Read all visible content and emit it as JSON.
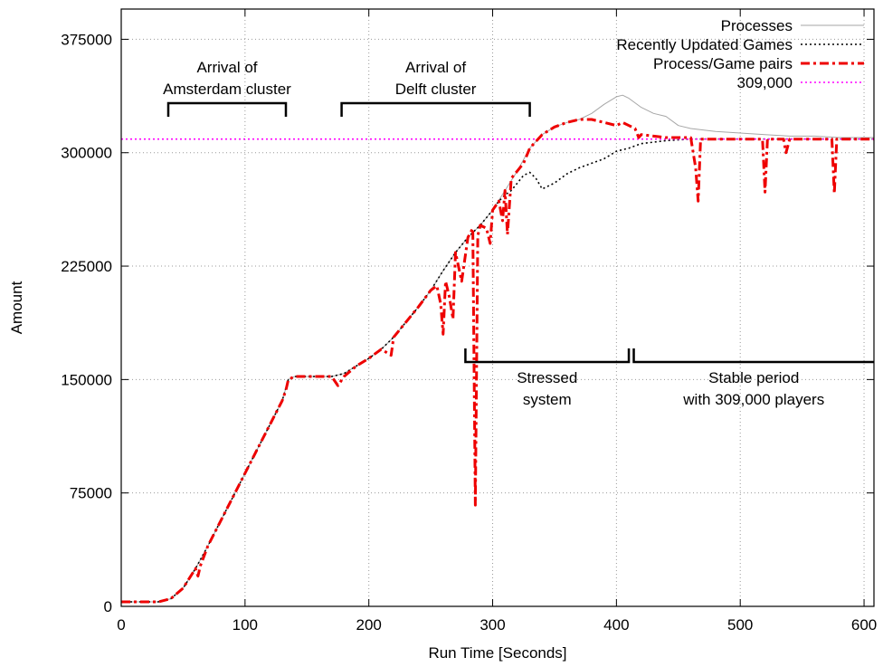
{
  "chart_data": {
    "type": "line",
    "xlabel": "Run Time [Seconds]",
    "ylabel": "Amount",
    "xlim": [
      0,
      608
    ],
    "ylim": [
      0,
      395000
    ],
    "xticks": [
      "0",
      "100",
      "200",
      "300",
      "400",
      "500",
      "600"
    ],
    "yticks": [
      "0",
      "75000",
      "150000",
      "225000",
      "300000",
      "375000"
    ],
    "grid": true,
    "legend_position": "top-right",
    "series": [
      {
        "name": "Processes",
        "color": "#a6a6a6",
        "style": "solid",
        "x": [
          0,
          30,
          40,
          50,
          60,
          70,
          80,
          90,
          100,
          110,
          120,
          130,
          135,
          140,
          150,
          160,
          170,
          180,
          190,
          200,
          210,
          220,
          230,
          240,
          250,
          260,
          270,
          280,
          290,
          300,
          310,
          320,
          330,
          340,
          350,
          360,
          370,
          380,
          390,
          400,
          405,
          410,
          420,
          430,
          440,
          450,
          460,
          480,
          500,
          520,
          540,
          560,
          580,
          600,
          608
        ],
        "y": [
          3000,
          3000,
          5000,
          12000,
          25000,
          40000,
          56000,
          72000,
          88000,
          104000,
          120000,
          136000,
          150000,
          152000,
          152000,
          152000,
          152000,
          154000,
          159000,
          164000,
          170000,
          178000,
          188000,
          198000,
          209000,
          222000,
          234000,
          244000,
          252000,
          262000,
          275000,
          288000,
          303000,
          312000,
          317000,
          320000,
          322000,
          326000,
          332000,
          337000,
          338000,
          336000,
          330000,
          326000,
          324000,
          318000,
          316000,
          314000,
          313000,
          312000,
          311000,
          311000,
          310000,
          310000,
          310000
        ]
      },
      {
        "name": "Recently Updated Games",
        "color": "#000000",
        "style": "dotted",
        "x": [
          0,
          30,
          40,
          50,
          60,
          70,
          80,
          90,
          100,
          110,
          120,
          130,
          135,
          140,
          150,
          160,
          170,
          180,
          190,
          200,
          210,
          220,
          230,
          240,
          250,
          260,
          270,
          280,
          290,
          300,
          305,
          310,
          315,
          320,
          325,
          330,
          335,
          340,
          345,
          350,
          360,
          370,
          380,
          390,
          400,
          410,
          420,
          440,
          460,
          480,
          500,
          520,
          540,
          560,
          580,
          600,
          608
        ],
        "y": [
          3000,
          3000,
          5000,
          12000,
          25000,
          40000,
          56000,
          72000,
          88000,
          104000,
          120000,
          136000,
          150000,
          152000,
          152000,
          152000,
          152000,
          154000,
          159000,
          164000,
          170000,
          178000,
          188000,
          198000,
          209000,
          222000,
          234000,
          244000,
          252000,
          262000,
          268000,
          272000,
          275000,
          280000,
          285000,
          287000,
          283000,
          276000,
          278000,
          280000,
          286000,
          290000,
          293000,
          296000,
          301000,
          303000,
          306000,
          308000,
          309000,
          309000,
          309000,
          309000,
          309000,
          309000,
          309000,
          309000,
          309000
        ]
      },
      {
        "name": "Process/Game pairs",
        "color": "#ee0000",
        "style": "dash-dot",
        "x": [
          0,
          30,
          40,
          50,
          60,
          62,
          64,
          70,
          80,
          90,
          100,
          110,
          120,
          130,
          133,
          135,
          140,
          150,
          160,
          170,
          175,
          180,
          190,
          200,
          210,
          218,
          220,
          230,
          240,
          250,
          255,
          258,
          260,
          262,
          265,
          268,
          270,
          275,
          280,
          284,
          286,
          288,
          290,
          295,
          298,
          300,
          305,
          308,
          310,
          312,
          315,
          320,
          325,
          330,
          340,
          350,
          360,
          370,
          380,
          390,
          400,
          405,
          410,
          415,
          418,
          420,
          430,
          440,
          450,
          460,
          464,
          466,
          468,
          480,
          500,
          518,
          520,
          522,
          535,
          537,
          540,
          560,
          574,
          576,
          578,
          590,
          600,
          608
        ],
        "y": [
          3000,
          3000,
          5000,
          12000,
          25000,
          20000,
          27000,
          40000,
          56000,
          72000,
          88000,
          104000,
          120000,
          136000,
          143000,
          150000,
          152000,
          152000,
          152000,
          152000,
          146000,
          152000,
          159000,
          164000,
          170000,
          166000,
          178000,
          188000,
          198000,
          209000,
          212000,
          200000,
          180000,
          215000,
          205000,
          190000,
          234000,
          215000,
          244000,
          250000,
          67000,
          245000,
          252000,
          250000,
          240000,
          262000,
          268000,
          255000,
          275000,
          246000,
          283000,
          288000,
          293000,
          303000,
          312000,
          317000,
          320000,
          322000,
          322000,
          320000,
          318000,
          320000,
          318000,
          316000,
          310000,
          312000,
          311000,
          310000,
          310000,
          310000,
          290000,
          268000,
          309000,
          309000,
          309000,
          309000,
          274000,
          309000,
          309000,
          300000,
          309000,
          309000,
          309000,
          273000,
          309000,
          309000,
          309000,
          309000
        ]
      },
      {
        "name": "309,000",
        "color": "#ff00ff",
        "style": "dotted",
        "x": [
          0,
          608
        ],
        "y": [
          309000,
          309000
        ]
      }
    ],
    "annotations": [
      {
        "line1": "Arrival of",
        "line2": "Amsterdam cluster",
        "x_start": 38,
        "x_end": 133
      },
      {
        "line1": "Arrival of",
        "line2": "Delft cluster",
        "x_start": 178,
        "x_end": 330
      },
      {
        "line1": "Stressed",
        "line2": "system",
        "x_start": 278,
        "x_end": 410
      },
      {
        "line1": "Stable period",
        "line2": "with 309,000 players",
        "x_start": 414,
        "x_end": 608
      }
    ]
  }
}
